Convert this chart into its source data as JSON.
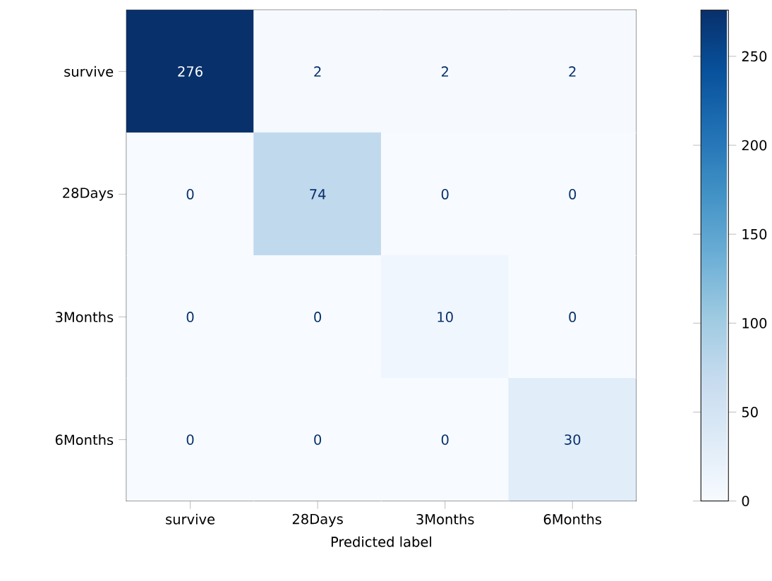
{
  "chart_data": {
    "type": "heatmap",
    "xlabel": "Predicted label",
    "categories": [
      "survive",
      "28Days",
      "3Months",
      "6Months"
    ],
    "y_categories": [
      "survive",
      "28Days",
      "3Months",
      "6Months"
    ],
    "cells": [
      [
        276,
        2,
        2,
        2
      ],
      [
        0,
        74,
        0,
        0
      ],
      [
        0,
        0,
        10,
        0
      ],
      [
        0,
        0,
        0,
        30
      ]
    ],
    "clim": [
      0,
      276
    ],
    "cticks": [
      0,
      50,
      100,
      150,
      200,
      250
    ],
    "data_labels": true
  }
}
